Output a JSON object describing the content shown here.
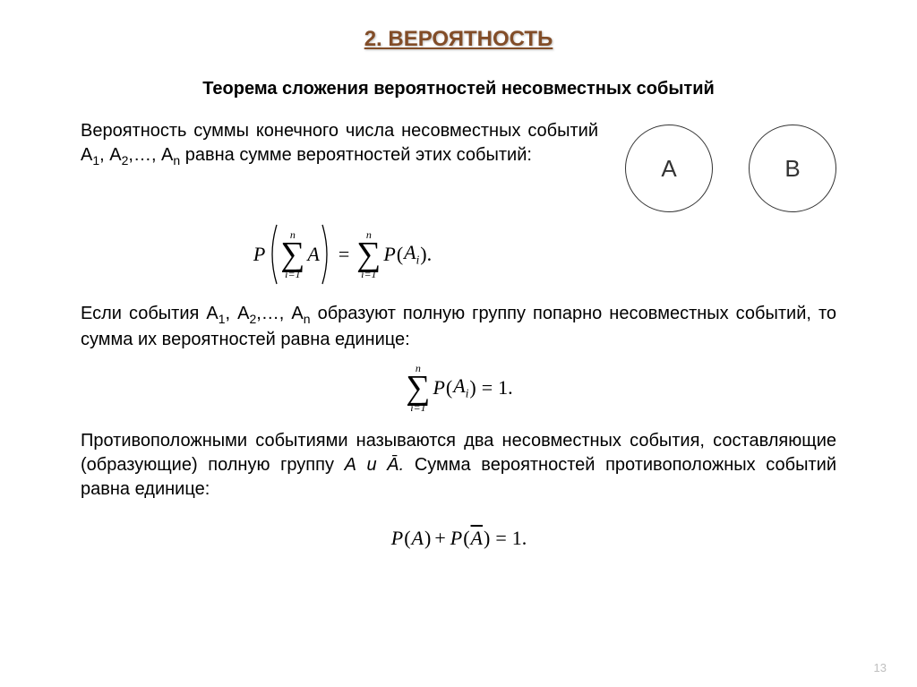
{
  "title": "2. ВЕРОЯТНОСТЬ",
  "subtitle": "Теорема сложения вероятностей несовместных событий",
  "para1_html": "Вероятность суммы конечного числа несовместных событий А<span class='sub'>1</span>, А<span class='sub'>2</span>,…, А<span class='sub'>n</span> равна сумме вероятностей этих событий:",
  "circleA": "A",
  "circleB": "B",
  "formula1": {
    "sum_top": "n",
    "sum_bot": "i=1",
    "inner": "A",
    "rhs_inner_html": "A<span class='ssub'>i</span>"
  },
  "para2_html": "Если события А<span class='sub'>1</span>, А<span class='sub'>2</span>,…, А<span class='sub'>n</span> образуют полную группу попарно несовместных событий, то сумма их вероятностей равна единице:",
  "formula2": {
    "sum_top": "n",
    "sum_bot": "i=1",
    "inner_html": "A<span class='ssub'>i</span>",
    "rhs": "1."
  },
  "para3_html": "Противоположными событиями называются два несовместных события, составляющие (образующие) полную группу <i>А и Ā.</i> Сумма вероятностей противоположных событий равна единице:",
  "formula3": {
    "lhs1": "A",
    "lhs2_html": "<span class='overline'>A</span>",
    "rhs": "1."
  },
  "page": "13",
  "colors": {
    "title": "#824d28",
    "text": "#000000",
    "pagenum": "#bfbfbf",
    "bg": "#ffffff"
  }
}
